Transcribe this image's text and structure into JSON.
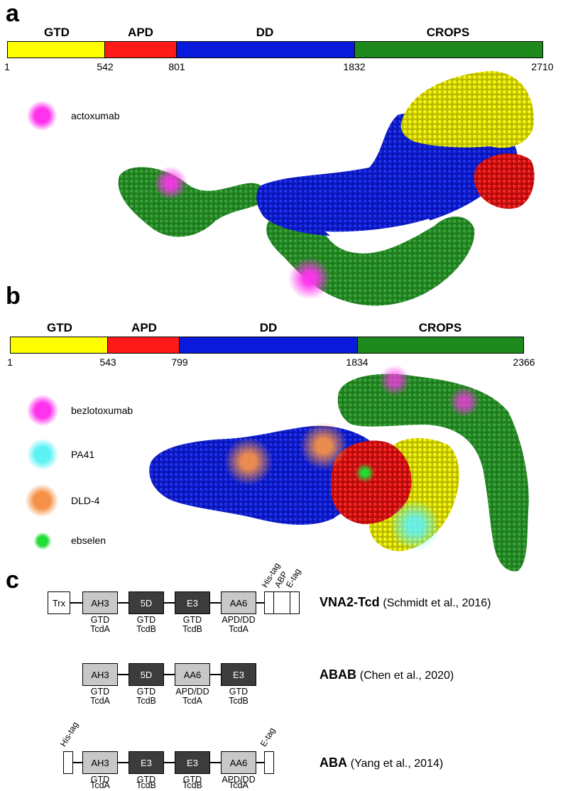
{
  "panel_a": {
    "letter": "a",
    "domains": [
      {
        "label": "GTD",
        "start": 1,
        "end": 542,
        "color": "#ffff00"
      },
      {
        "label": "APD",
        "start": 542,
        "end": 801,
        "color": "#ff1a1a"
      },
      {
        "label": "DD",
        "start": 801,
        "end": 1832,
        "color": "#0a1adc"
      },
      {
        "label": "CROPS",
        "start": 1832,
        "end": 2710,
        "color": "#1e8a1e"
      }
    ],
    "ticks": [
      "1",
      "542",
      "801",
      "1832",
      "2710"
    ],
    "legend": [
      {
        "label": "actoxumab",
        "color": "#ff33ee"
      }
    ]
  },
  "panel_b": {
    "letter": "b",
    "domains": [
      {
        "label": "GTD",
        "start": 1,
        "end": 543,
        "color": "#ffff00"
      },
      {
        "label": "APD",
        "start": 543,
        "end": 799,
        "color": "#ff1a1a"
      },
      {
        "label": "DD",
        "start": 799,
        "end": 1834,
        "color": "#0a1adc"
      },
      {
        "label": "CROPS",
        "start": 1834,
        "end": 2366,
        "color": "#1e8a1e"
      }
    ],
    "ticks": [
      "1",
      "543",
      "799",
      "1834",
      "2366"
    ],
    "legend": [
      {
        "label": "bezlotoxumab",
        "color": "#ff33ee"
      },
      {
        "label": "PA41",
        "color": "#5ff2f5"
      },
      {
        "label": "DLD-4",
        "color": "#f59148"
      },
      {
        "label": "ebselen",
        "color": "#22dd33"
      }
    ]
  },
  "panel_c": {
    "letter": "c",
    "constructs": [
      {
        "name": "VNA2-Tcd",
        "ref": "(Schmidt et al., 2016)",
        "boxes": [
          {
            "text": "Trx",
            "style": "white"
          },
          {
            "text": "AH3",
            "style": "light",
            "cap1": "GTD",
            "cap2": "TcdA"
          },
          {
            "text": "5D",
            "style": "dark",
            "cap1": "GTD",
            "cap2": "TcdB"
          },
          {
            "text": "E3",
            "style": "dark",
            "cap1": "GTD",
            "cap2": "TcdB"
          },
          {
            "text": "AA6",
            "style": "light",
            "cap1": "APD/DD",
            "cap2": "TcdA"
          }
        ],
        "tags": [
          "His-tag",
          "ABP",
          "E-tag"
        ]
      },
      {
        "name": "ABAB",
        "ref": "(Chen et al., 2020)",
        "boxes": [
          {
            "text": "AH3",
            "style": "light",
            "cap1": "GTD",
            "cap2": "TcdA"
          },
          {
            "text": "5D",
            "style": "dark",
            "cap1": "GTD",
            "cap2": "TcdB"
          },
          {
            "text": "AA6",
            "style": "light",
            "cap1": "APD/DD",
            "cap2": "TcdA"
          },
          {
            "text": "E3",
            "style": "dark",
            "cap1": "GTD",
            "cap2": "TcdB"
          }
        ]
      },
      {
        "name": "ABA",
        "ref": "(Yang et al., 2014)",
        "boxes": [
          {
            "text": "AH3",
            "style": "light",
            "cap1": "GTD",
            "cap2": "TcdA"
          },
          {
            "text": "E3",
            "style": "dark",
            "cap1": "GTD",
            "cap2": "TcdB"
          },
          {
            "text": "E3",
            "style": "dark",
            "cap1": "GTD",
            "cap2": "TcdB"
          },
          {
            "text": "AA6",
            "style": "light",
            "cap1": "APD/DD",
            "cap2": "TcdA"
          }
        ],
        "tags": [
          "His-tag",
          "E-tag"
        ]
      }
    ]
  }
}
